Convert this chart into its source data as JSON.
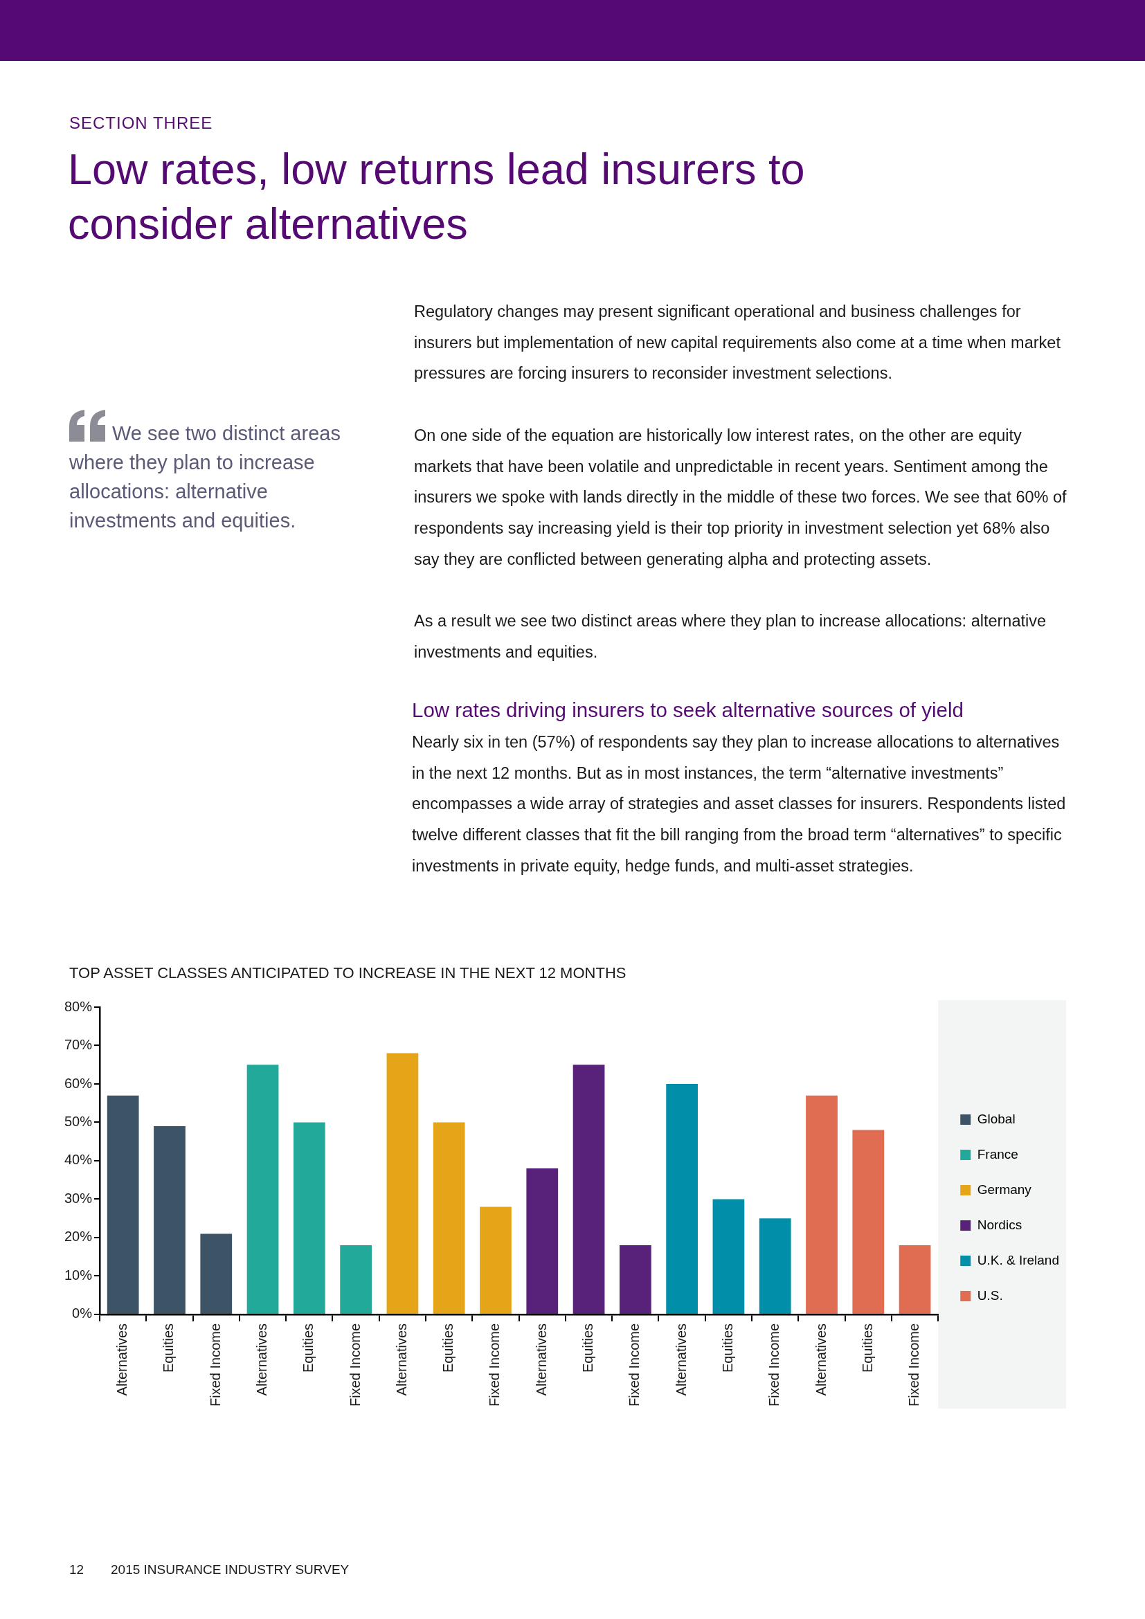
{
  "chart_data": {
    "type": "bar",
    "title": "TOP ASSET CLASSES ANTICIPATED TO INCREASE IN THE NEXT 12 MONTHS",
    "categories": [
      "Alternatives",
      "Equities",
      "Fixed Income",
      "Alternatives",
      "Equities",
      "Fixed Income",
      "Alternatives",
      "Equities",
      "Fixed Income",
      "Alternatives",
      "Equities",
      "Fixed Income",
      "Alternatives",
      "Equities",
      "Fixed Income",
      "Alternatives",
      "Equities",
      "Fixed Income"
    ],
    "series": [
      {
        "name": "Global",
        "color": "#3d5366",
        "values": [
          57,
          49,
          21,
          null,
          null,
          null,
          null,
          null,
          null,
          null,
          null,
          null,
          null,
          null,
          null,
          null,
          null,
          null
        ]
      },
      {
        "name": "France",
        "color": "#22a99a",
        "values": [
          null,
          null,
          null,
          65,
          50,
          18,
          null,
          null,
          null,
          null,
          null,
          null,
          null,
          null,
          null,
          null,
          null,
          null
        ]
      },
      {
        "name": "Germany",
        "color": "#e6a519",
        "values": [
          null,
          null,
          null,
          null,
          null,
          null,
          68,
          50,
          28,
          null,
          null,
          null,
          null,
          null,
          null,
          null,
          null,
          null
        ]
      },
      {
        "name": "Nordics",
        "color": "#58217a",
        "values": [
          null,
          null,
          null,
          null,
          null,
          null,
          null,
          null,
          null,
          38,
          65,
          18,
          null,
          null,
          null,
          null,
          null,
          null
        ]
      },
      {
        "name": "U.K. & Ireland",
        "color": "#008ea9",
        "values": [
          null,
          null,
          null,
          null,
          null,
          null,
          null,
          null,
          null,
          null,
          null,
          null,
          60,
          30,
          25,
          null,
          null,
          null
        ]
      },
      {
        "name": "U.S.",
        "color": "#e06c52",
        "values": [
          null,
          null,
          null,
          null,
          null,
          null,
          null,
          null,
          null,
          null,
          null,
          null,
          null,
          null,
          null,
          57,
          48,
          18
        ]
      }
    ],
    "ylim": [
      0,
      80
    ],
    "yticks": [
      {
        "value": 0,
        "label": "0%"
      },
      {
        "value": 10,
        "label": "10%"
      },
      {
        "value": 20,
        "label": "20%"
      },
      {
        "value": 30,
        "label": "30%"
      },
      {
        "value": 40,
        "label": "40%"
      },
      {
        "value": 50,
        "label": "50%"
      },
      {
        "value": 60,
        "label": "60%"
      },
      {
        "value": 70,
        "label": "70%"
      },
      {
        "value": 80,
        "label": "80%"
      }
    ],
    "grid": false,
    "legend": "right",
    "annotations": [
      "SECTION THREE",
      "Low rates, low returns lead insurers to consider alternatives",
      "Regulatory changes may present significant operational and business challenges for insurers but implementation of new capital requirements also come at a time when market pressures are forcing insurers to reconsider investment selections.",
      "On one side of the equation are historically low interest rates, on the other are equity markets that have been volatile and unpredictable in recent years. Sentiment among the insurers we spoke with lands directly in the middle of these two forces. We see that 60% of respondents say increasing yield is their top priority in investment selection yet 68% also say they are conflicted between generating alpha and protecting assets.",
      "As a result we see two distinct areas where they plan to increase allocations: alternative investments and equities.",
      "We see two distinct areas where they plan to increase allocations: alternative investments and equities.",
      "Low rates driving insurers to seek alternative sources of yield",
      "Nearly six in ten (57%) of respondents say they plan to increase allocations to alternatives in the next 12 months. But as in most instances, the term “alternative investments” encompasses a wide array of strategies and asset classes for insurers. Respondents listed twelve different classes that fit the bill ranging from the broad term “alternatives” to specific investments in private equity, hedge funds, and multi-asset strategies.",
      "12",
      "2015 INSURANCE INDUSTRY SURVEY"
    ]
  }
}
